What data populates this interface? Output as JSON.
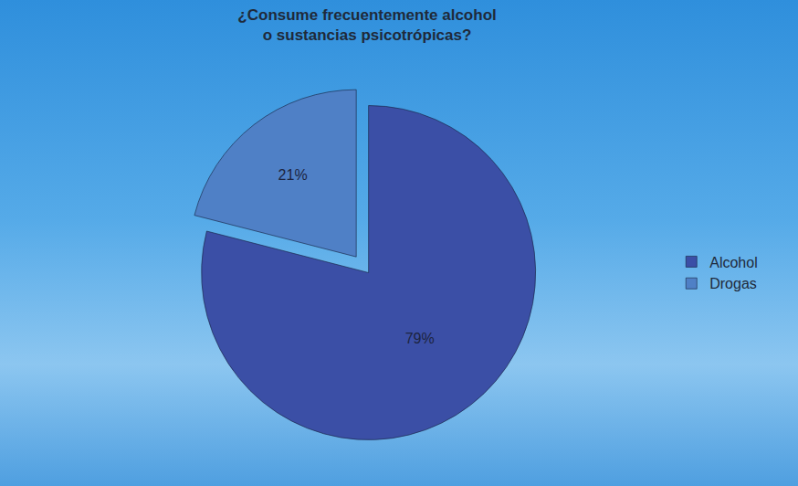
{
  "chart_data": {
    "type": "pie",
    "title": "¿Consume frecuentemente alcohol o sustancias psicotrópicas?",
    "categories": [
      "Alcohol",
      "Drogas"
    ],
    "values": [
      79,
      21
    ],
    "value_labels": [
      "79%",
      "21%"
    ],
    "colors": [
      "#3b4fa6",
      "#4f80c6"
    ],
    "data_labels": true,
    "legend": "right"
  }
}
